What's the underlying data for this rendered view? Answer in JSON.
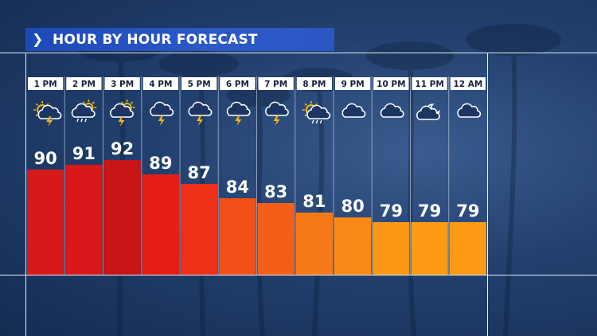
{
  "title": "HOUR BY HOUR FORECAST",
  "title_icon": "chevron-right-icon",
  "colors": {
    "title_bar": "#2450be",
    "label_box": "#ffffff",
    "bar_colors": [
      "#d61a1a",
      "#d9181a",
      "#c81515",
      "#e51d15",
      "#ef3018",
      "#f35019",
      "#f45e18",
      "#f67918",
      "#f98a15",
      "#fb9815",
      "#fd9c14",
      "#fd9c14"
    ]
  },
  "chart_data": {
    "type": "bar",
    "categories": [
      "1 PM",
      "2 PM",
      "3 PM",
      "4 PM",
      "5 PM",
      "6 PM",
      "7 PM",
      "8 PM",
      "9 PM",
      "10 PM",
      "11 PM",
      "12 AM"
    ],
    "values": [
      90,
      91,
      92,
      89,
      87,
      84,
      83,
      81,
      80,
      79,
      79,
      79
    ],
    "icons": [
      "sun-cloud-storm-icon",
      "cloud-rain-sun-icon",
      "cloud-storm-sun-icon",
      "cloud-storm-icon",
      "cloud-storm-icon",
      "cloud-storm-icon",
      "cloud-storm-icon",
      "sun-cloud-rain-icon",
      "cloud-icon",
      "cloud-icon",
      "moon-cloud-icon",
      "cloud-icon"
    ],
    "ylim": [
      68,
      98
    ]
  }
}
